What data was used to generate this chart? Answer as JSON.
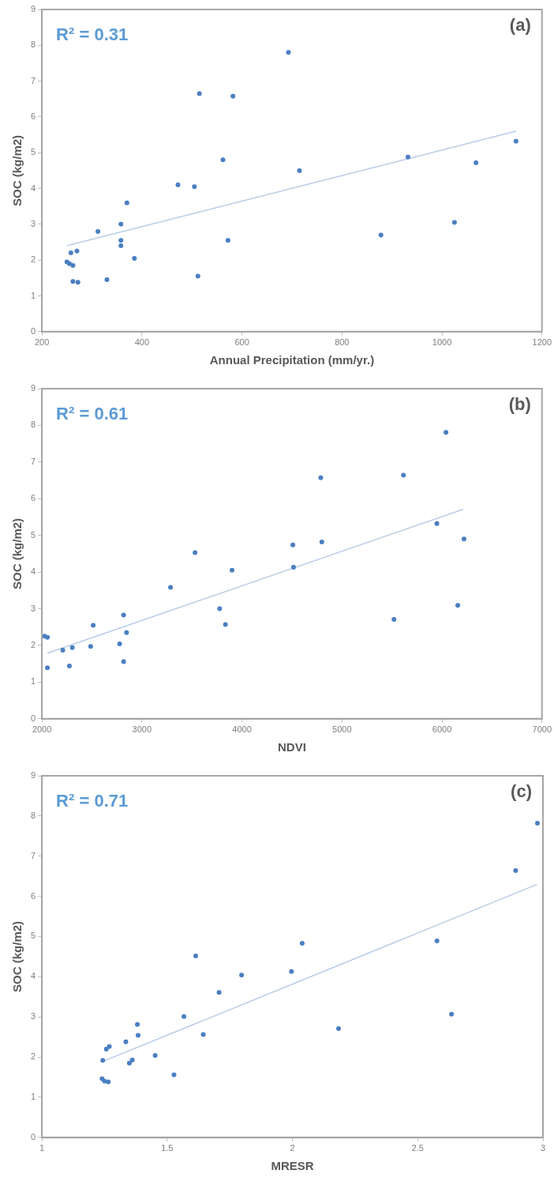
{
  "chart_data": [
    {
      "type": "scatter",
      "xlabel": "Annual Precipitation (mm/yr.)",
      "ylabel": "SOC (kg/m2)",
      "annotations": [
        "R² = 0.31",
        "(a)"
      ],
      "xlim": [
        200,
        1200
      ],
      "xticks": [
        200,
        400,
        600,
        800,
        1000,
        1200
      ],
      "ylim": [
        0,
        9
      ],
      "yticks": [
        0,
        1,
        2,
        3,
        4,
        5,
        6,
        7,
        8,
        9
      ],
      "series": [
        {
          "marker": "circle",
          "color": "#4a7fc1",
          "x": [
            250,
            255,
            258,
            262,
            262,
            270,
            272,
            312,
            330,
            358,
            358,
            358,
            370,
            385,
            472,
            505,
            512,
            515,
            562,
            572,
            582,
            693,
            715,
            878,
            932,
            1025,
            1068,
            1148
          ],
          "values": [
            1.95,
            1.9,
            2.2,
            1.85,
            1.4,
            2.25,
            1.38,
            2.8,
            1.45,
            3.0,
            2.55,
            2.4,
            3.6,
            2.05,
            4.1,
            4.05,
            1.55,
            6.65,
            4.8,
            2.55,
            6.58,
            7.8,
            4.5,
            2.7,
            4.88,
            3.05,
            4.72,
            5.32
          ]
        },
        {
          "type": "line",
          "marker": "none",
          "color": "#b8cde6",
          "x": [
            250,
            1148
          ],
          "values": [
            2.4,
            5.6
          ]
        }
      ]
    },
    {
      "type": "scatter",
      "xlabel": "NDVI",
      "ylabel": "SOC (kg/m2)",
      "annotations": [
        "R² = 0.61",
        "(b)"
      ],
      "xlim": [
        2000,
        7000
      ],
      "xticks": [
        2000,
        3000,
        4000,
        5000,
        6000,
        7000
      ],
      "ylim": [
        0,
        9
      ],
      "yticks": [
        0,
        1,
        2,
        3,
        4,
        5,
        6,
        7,
        8,
        9
      ],
      "series": [
        {
          "marker": "circle",
          "color": "#4a7fc1",
          "x": [
            2026,
            2055,
            2055,
            2209,
            2304,
            2275,
            2487,
            2513,
            2777,
            2817,
            2846,
            2817,
            3286,
            3531,
            3777,
            3835,
            3901,
            4509,
            4516,
            4788,
            4799,
            5520,
            5615,
            5949,
            6040,
            6158,
            6220
          ],
          "values": [
            2.25,
            2.22,
            1.39,
            1.87,
            1.94,
            1.44,
            1.97,
            2.55,
            2.04,
            2.83,
            2.35,
            1.56,
            3.58,
            4.53,
            3.0,
            2.57,
            4.05,
            4.74,
            4.13,
            6.57,
            4.82,
            2.71,
            6.64,
            5.32,
            7.81,
            3.09,
            4.9
          ]
        },
        {
          "type": "line",
          "marker": "none",
          "color": "#b8cde6",
          "x": [
            2055,
            6212
          ],
          "values": [
            1.79,
            5.71
          ]
        }
      ]
    },
    {
      "type": "scatter",
      "xlabel": "MRESR",
      "ylabel": "SOC (kg/m2)",
      "annotations": [
        "R² = 0.71",
        "(c)"
      ],
      "xlim": [
        1,
        3
      ],
      "xticks": [
        1,
        1.5,
        2,
        2.5,
        3
      ],
      "ylim": [
        0,
        9
      ],
      "yticks": [
        0,
        1,
        2,
        3,
        4,
        5,
        6,
        7,
        8,
        9
      ],
      "series": [
        {
          "marker": "circle",
          "color": "#4a7fc1",
          "x": [
            1.243,
            1.24,
            1.25,
            1.265,
            1.257,
            1.269,
            1.335,
            1.349,
            1.361,
            1.381,
            1.384,
            1.452,
            1.527,
            1.567,
            1.614,
            1.644,
            1.707,
            1.797,
            1.996,
            2.039,
            2.184,
            2.577,
            2.635,
            2.891,
            2.978
          ],
          "values": [
            1.92,
            1.46,
            1.4,
            1.38,
            2.2,
            2.26,
            2.38,
            1.85,
            1.93,
            2.81,
            2.54,
            2.04,
            1.56,
            3.01,
            4.52,
            2.56,
            3.61,
            4.04,
            4.13,
            4.83,
            2.71,
            4.89,
            3.07,
            6.64,
            7.82
          ]
        },
        {
          "type": "line",
          "marker": "none",
          "color": "#b8cde6",
          "x": [
            1.243,
            2.977
          ],
          "values": [
            1.89,
            6.3
          ]
        }
      ]
    }
  ]
}
